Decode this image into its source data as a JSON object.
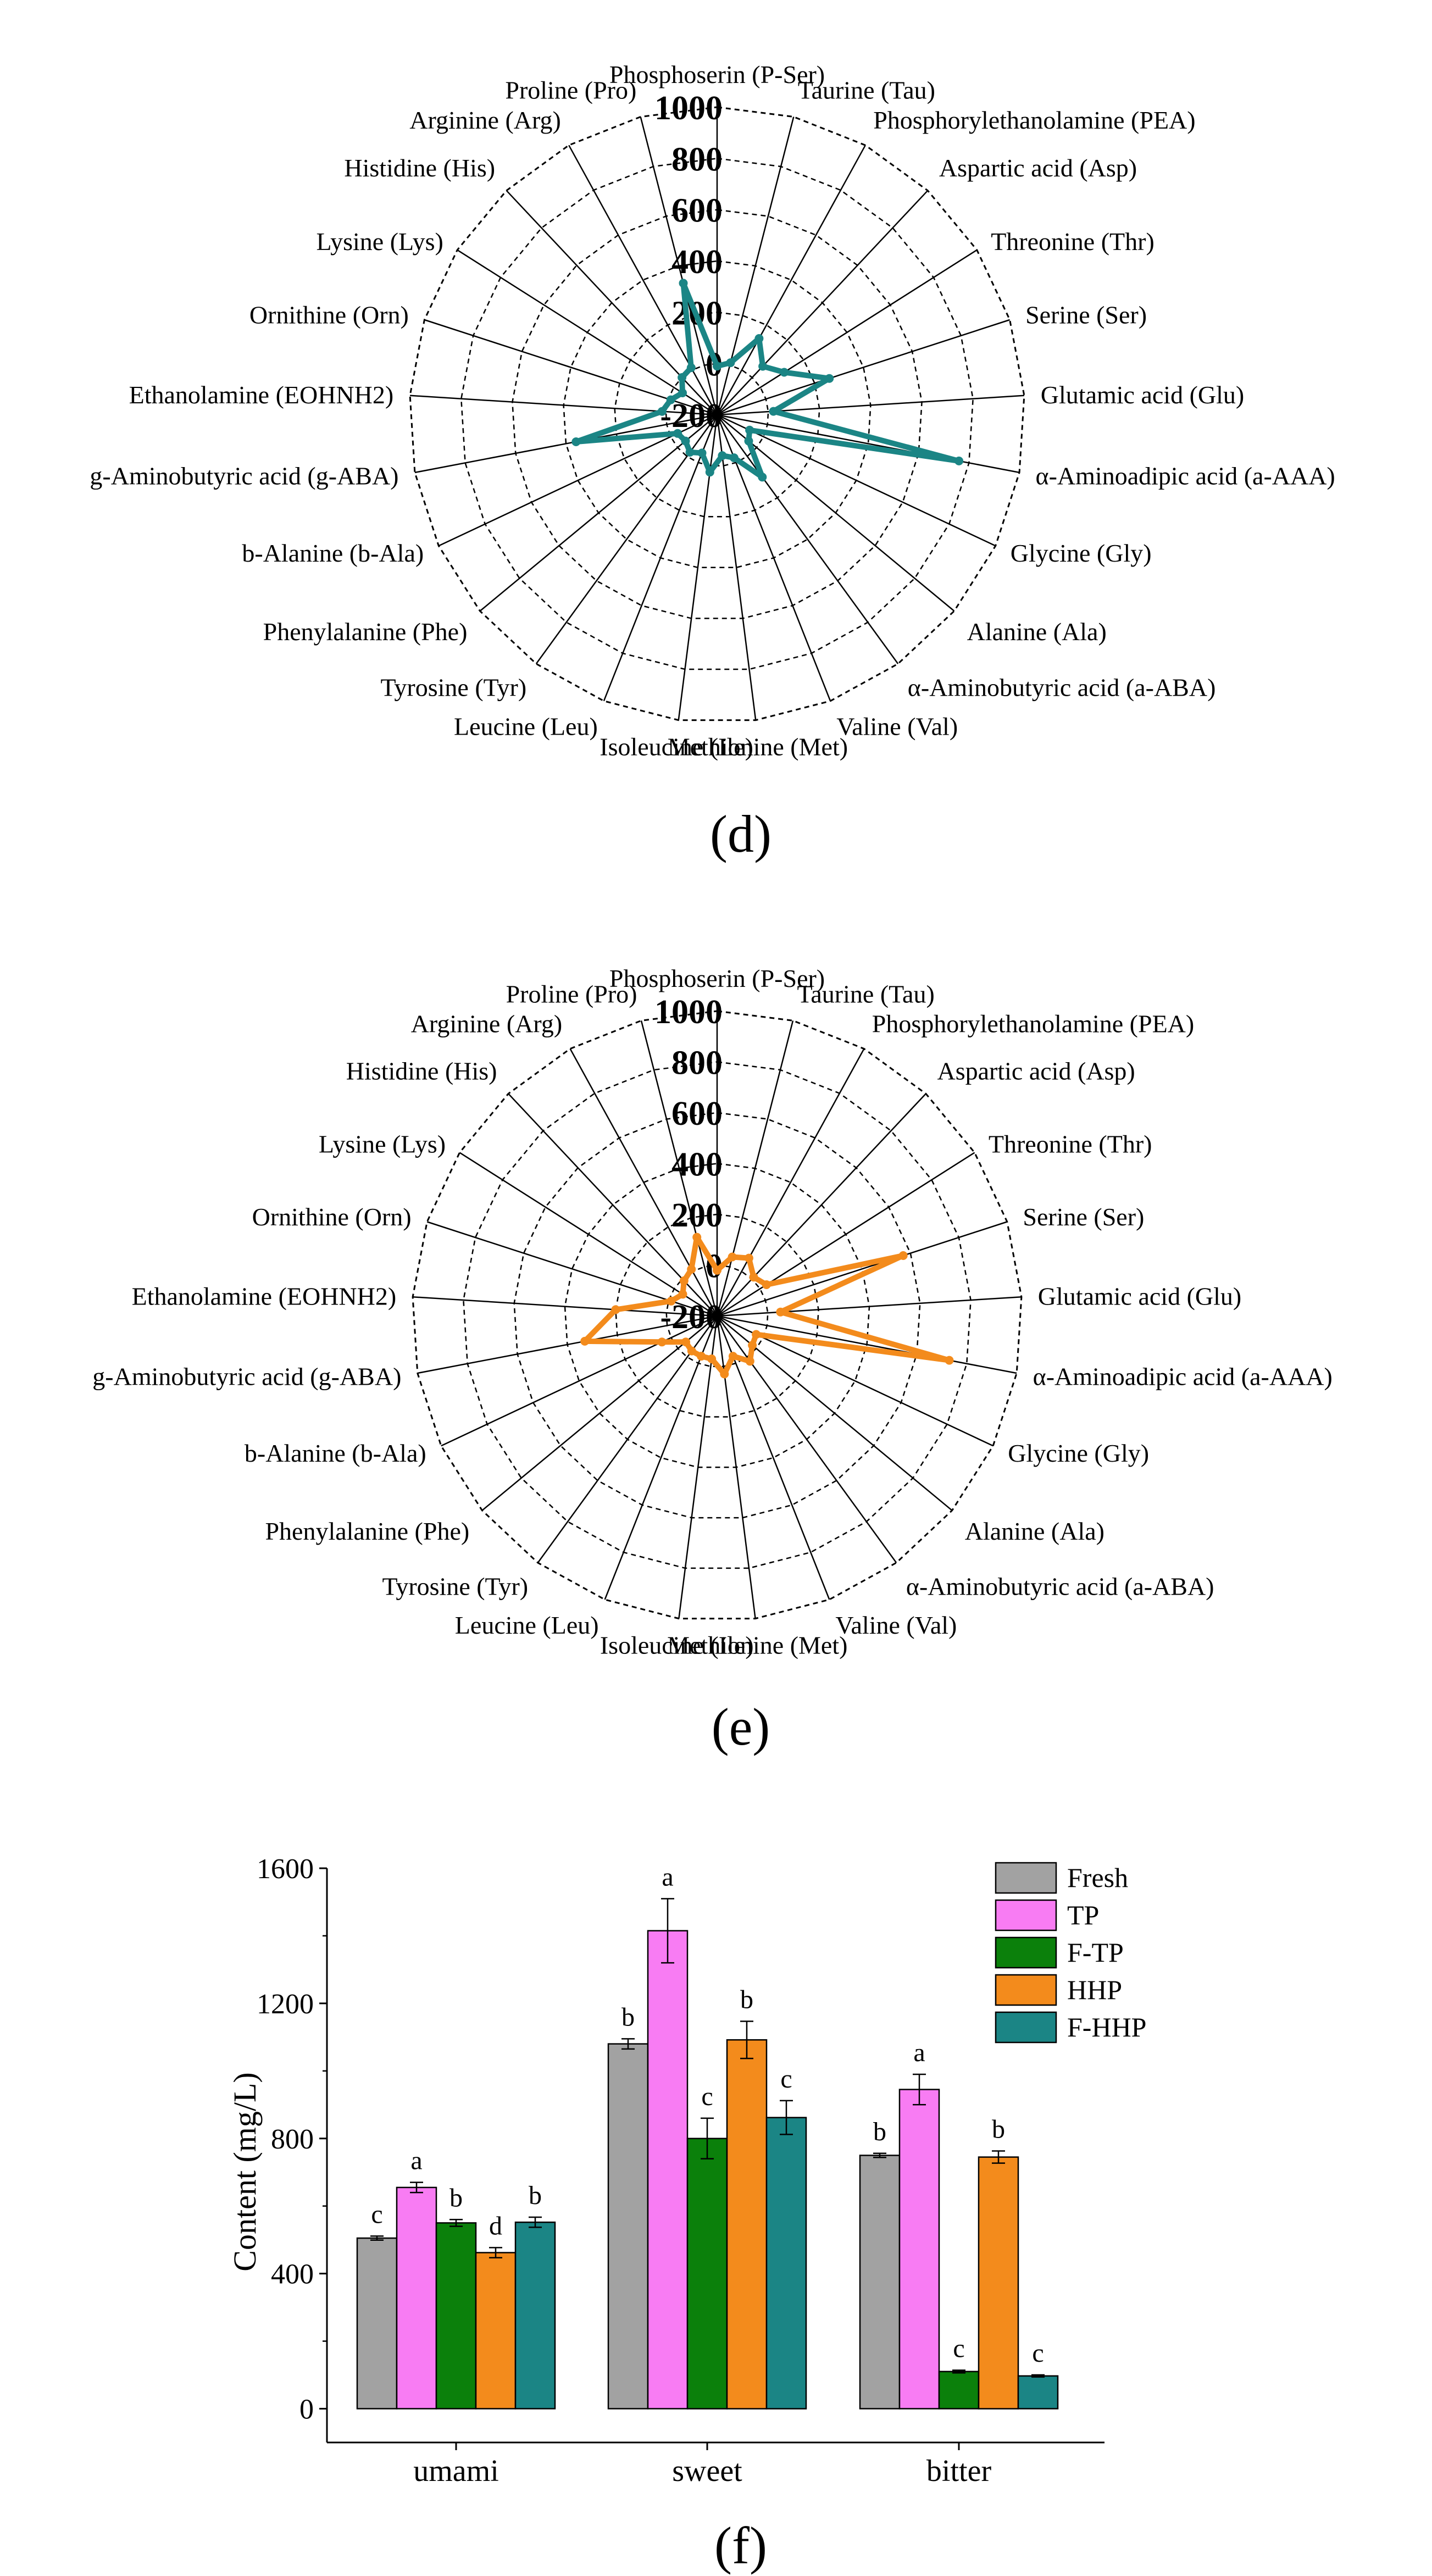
{
  "chart_data": [
    {
      "type": "radar",
      "panel": "(d)",
      "series_name": "F-HHP",
      "color": "#1b8585",
      "radial_ticks": [
        -200,
        0,
        200,
        400,
        600,
        800,
        1000
      ],
      "rlim": [
        -200,
        1000
      ],
      "categories": [
        "Phosphoserin (P-Ser)",
        "Taurine (Tau)",
        "Phosphorylethanolamine (PEA)",
        "Aspartic acid (Asp)",
        "Threonine (Thr)",
        "Serine (Ser)",
        "Glutamic acid (Glu)",
        "α-Aminoadipic acid (a-AAA)",
        "Glycine (Gly)",
        "Alanine (Ala)",
        "α-Aminobutyric acid (a-ABA)",
        "Valine (Val)",
        "Methionine (Met)",
        "Isoleucine (Ile)",
        "Leucine (Leu)",
        "Tyrosine (Tyr)",
        "Phenylalanine (Phe)",
        "b-Alanine (b-Ala)",
        "g-Aminobutyric acid (g-ABA)",
        "Ethanolamine (EOHNH2)",
        "Ornithine (Orn)",
        "Lysine (Lys)",
        "Histidine (His)",
        "Arginine (Arg)",
        "Proline (Pro)"
      ],
      "values": [
        -10,
        10,
        140,
        60,
        110,
        260,
        20,
        760,
        -60,
        -40,
        100,
        -20,
        -40,
        25,
        -40,
        -20,
        -40,
        -30,
        360,
        15,
        -10,
        -40,
        0,
        10,
        330
      ]
    },
    {
      "type": "radar",
      "panel": "(e)",
      "series_name": "HHP",
      "color": "#f38b1c",
      "radial_ticks": [
        -200,
        0,
        200,
        400,
        600,
        800,
        1000
      ],
      "rlim": [
        -200,
        1000
      ],
      "categories": [
        "Phosphoserin (P-Ser)",
        "Taurine (Tau)",
        "Phosphorylethanolamine (PEA)",
        "Aspartic acid (Asp)",
        "Threonine (Thr)",
        "Serine (Ser)",
        "Glutamic acid (Glu)",
        "α-Aminoadipic acid (a-AAA)",
        "Glycine (Gly)",
        "Alanine (Ala)",
        "α-Aminobutyric acid (a-ABA)",
        "Valine (Val)",
        "Methionine (Met)",
        "Isoleucine (Ile)",
        "Leucine (Leu)",
        "Tyrosine (Tyr)",
        "Phenylalanine (Phe)",
        "b-Alanine (b-Ala)",
        "g-Aminobutyric acid (g-ABA)",
        "Ethanolamine (EOHNH2)",
        "Ornithine (Orn)",
        "Lysine (Lys)",
        "Histidine (His)",
        "Arginine (Arg)",
        "Proline (Pro)"
      ],
      "values": [
        -20,
        40,
        60,
        10,
        30,
        570,
        50,
        730,
        -30,
        -20,
        20,
        -30,
        30,
        -30,
        -30,
        -30,
        -40,
        40,
        330,
        200,
        -10,
        -40,
        -10,
        10,
        120
      ]
    },
    {
      "type": "bar",
      "panel": "(f)",
      "categories": [
        "umami",
        "sweet",
        "bitter"
      ],
      "ylabel": "Content (mg/L)",
      "xlabel": "",
      "ylim": [
        -100,
        1600
      ],
      "yticks": [
        0,
        400,
        800,
        1200,
        1600
      ],
      "legend_position": "top-right",
      "series": [
        {
          "name": "Fresh",
          "color": "#a2a2a2",
          "values": [
            505,
            1080,
            750
          ],
          "errors": [
            6,
            15,
            6
          ],
          "letters": [
            "c",
            "b",
            "b"
          ]
        },
        {
          "name": "TP",
          "color": "#f87cf3",
          "values": [
            655,
            1415,
            945
          ],
          "errors": [
            15,
            95,
            45
          ],
          "letters": [
            "a",
            "a",
            "a"
          ]
        },
        {
          "name": "F-TP",
          "color": "#0b800b",
          "values": [
            550,
            800,
            110
          ],
          "errors": [
            10,
            60,
            4
          ],
          "letters": [
            "b",
            "c",
            "c"
          ]
        },
        {
          "name": "HHP",
          "color": "#f38b1c",
          "values": [
            462,
            1092,
            745
          ],
          "errors": [
            15,
            55,
            18
          ],
          "letters": [
            "d",
            "b",
            "b"
          ]
        },
        {
          "name": "F-HHP",
          "color": "#1b8585",
          "values": [
            552,
            862,
            97
          ],
          "errors": [
            15,
            50,
            3
          ],
          "letters": [
            "b",
            "c",
            "c"
          ]
        }
      ]
    }
  ]
}
